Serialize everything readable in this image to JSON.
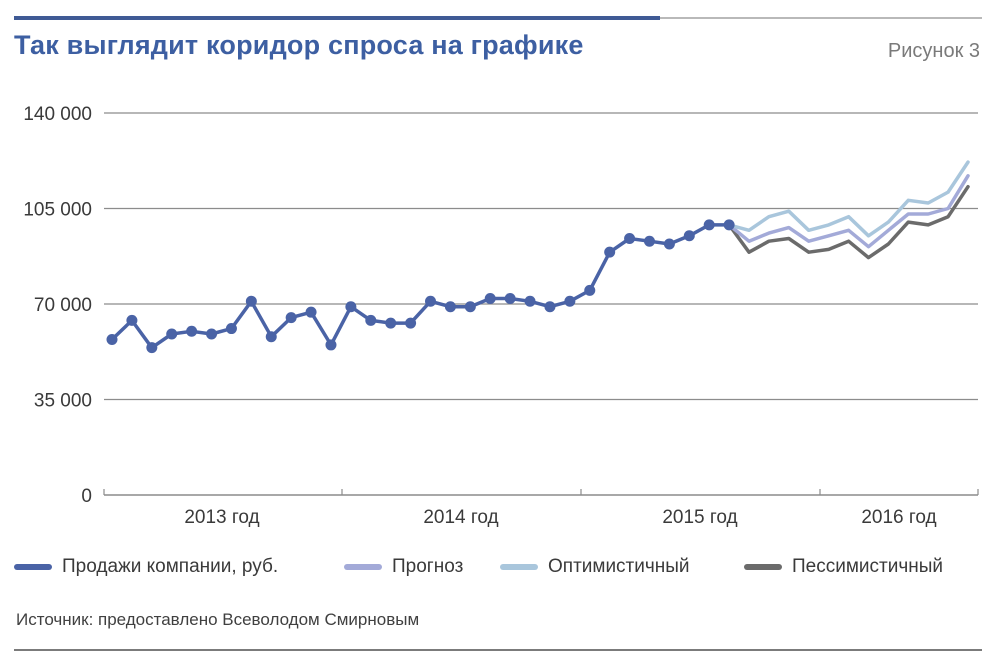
{
  "header": {
    "title": "Так выглядит коридор спроса на графике",
    "figure_label": "Рисунок 3"
  },
  "legend": [
    {
      "label": "Продажи компании, руб.",
      "color": "#4a63a6"
    },
    {
      "label": "Прогноз",
      "color": "#a3aad8"
    },
    {
      "label": "Оптимистичный",
      "color": "#a9c6dc"
    },
    {
      "label": "Пессимистичный",
      "color": "#6b6b6b"
    }
  ],
  "source": "Источник: предоставлено Всеволодом Смирновым",
  "chart_data": {
    "type": "line",
    "grid": true,
    "ylim": [
      0,
      140000
    ],
    "yticks": [
      "0",
      "35 000",
      "70 000",
      "105 000",
      "140 000"
    ],
    "ytick_values": [
      0,
      35000,
      70000,
      105000,
      140000
    ],
    "categories": [
      "2013 год",
      "2014 год",
      "2015 год",
      "2016 год"
    ],
    "series": [
      {
        "name": "Продажи компании, руб.",
        "color": "#4a63a6",
        "markers": true,
        "x": [
          0,
          1,
          2,
          3,
          4,
          5,
          6,
          7,
          8,
          9,
          10,
          11,
          12,
          13,
          14,
          15,
          16,
          17,
          18,
          19,
          20,
          21,
          22,
          23,
          24,
          25,
          26,
          27,
          28,
          29,
          30,
          31
        ],
        "values": [
          57000,
          64000,
          54000,
          59000,
          60000,
          59000,
          61000,
          71000,
          58000,
          65000,
          67000,
          55000,
          69000,
          64000,
          63000,
          63000,
          71000,
          69000,
          69000,
          72000,
          72000,
          71000,
          69000,
          71000,
          75000,
          89000,
          94000,
          93000,
          92000,
          95000,
          99000,
          99000
        ]
      },
      {
        "name": "Прогноз",
        "color": "#a3aad8",
        "markers": false,
        "x": [
          31,
          32,
          33,
          34,
          35,
          36,
          37,
          38,
          39,
          40,
          41,
          42,
          43
        ],
        "values": [
          99000,
          93000,
          96000,
          98000,
          93000,
          95000,
          97000,
          91000,
          97000,
          103000,
          103000,
          105000,
          117000
        ]
      },
      {
        "name": "Оптимистичный",
        "color": "#a9c6dc",
        "markers": false,
        "x": [
          31,
          32,
          33,
          34,
          35,
          36,
          37,
          38,
          39,
          40,
          41,
          42,
          43
        ],
        "values": [
          99000,
          97000,
          102000,
          104000,
          97000,
          99000,
          102000,
          95000,
          100000,
          108000,
          107000,
          111000,
          122000
        ]
      },
      {
        "name": "Пессимистичный",
        "color": "#6b6b6b",
        "markers": false,
        "x": [
          31,
          32,
          33,
          34,
          35,
          36,
          37,
          38,
          39,
          40,
          41,
          42,
          43
        ],
        "values": [
          99000,
          89000,
          93000,
          94000,
          89000,
          90000,
          93000,
          87000,
          92000,
          100000,
          99000,
          102000,
          113000
        ]
      }
    ]
  }
}
